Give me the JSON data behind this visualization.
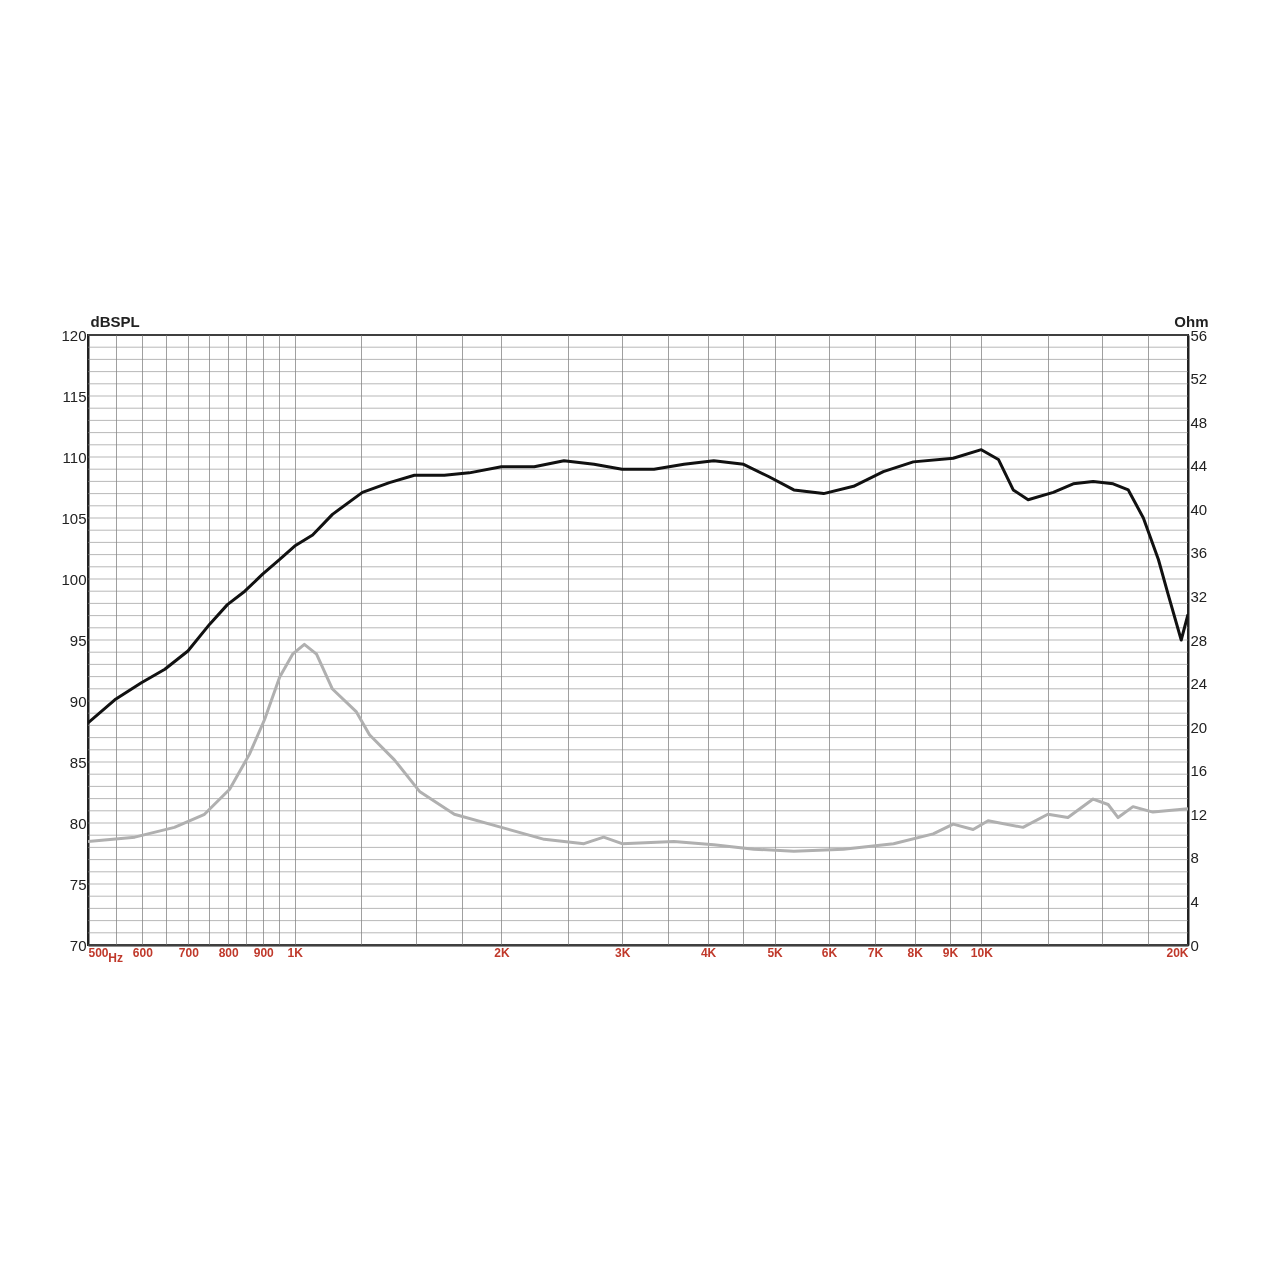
{
  "chart_data": {
    "type": "line",
    "ylabel": "dBSPL",
    "y2label": "Ohm",
    "xlabel": "Hz",
    "log": "x",
    "grid": true,
    "marker": "none",
    "line_style": "solid",
    "xlim": [
      500,
      20000
    ],
    "xticks": [
      500,
      {
        "value": 550,
        "label": null
      },
      600,
      {
        "value": 650,
        "label": null
      },
      700,
      {
        "value": 750,
        "label": null
      },
      800,
      {
        "value": 850,
        "label": null
      },
      900,
      {
        "value": 950,
        "label": null
      },
      {
        "value": 1000,
        "label": "1K"
      },
      {
        "value": 1250,
        "label": null
      },
      {
        "value": 1500,
        "label": null
      },
      {
        "value": 1750,
        "label": null
      },
      {
        "value": 2000,
        "label": "2K"
      },
      {
        "value": 2500,
        "label": null
      },
      {
        "value": 3000,
        "label": "3K"
      },
      {
        "value": 3500,
        "label": null
      },
      {
        "value": 4000,
        "label": "4K"
      },
      {
        "value": 4500,
        "label": null
      },
      {
        "value": 5000,
        "label": "5K"
      },
      {
        "value": 6000,
        "label": "6K"
      },
      {
        "value": 7000,
        "label": "7K"
      },
      {
        "value": 8000,
        "label": "8K"
      },
      {
        "value": 9000,
        "label": "9K"
      },
      {
        "value": 10000,
        "label": "10K"
      },
      {
        "value": 12500,
        "label": null
      },
      {
        "value": 15000,
        "label": null
      },
      {
        "value": 17500,
        "label": null
      },
      {
        "value": 20000,
        "label": "20K"
      }
    ],
    "ylim": [
      70,
      120
    ],
    "yticks": [
      70,
      {
        "value": 71,
        "label": null
      },
      {
        "value": 72,
        "label": null
      },
      {
        "value": 73,
        "label": null
      },
      {
        "value": 74,
        "label": null
      },
      75,
      {
        "value": 76,
        "label": null
      },
      {
        "value": 77,
        "label": null
      },
      {
        "value": 78,
        "label": null
      },
      {
        "value": 79,
        "label": null
      },
      80,
      {
        "value": 81,
        "label": null
      },
      {
        "value": 82,
        "label": null
      },
      {
        "value": 83,
        "label": null
      },
      {
        "value": 84,
        "label": null
      },
      85,
      {
        "value": 86,
        "label": null
      },
      {
        "value": 87,
        "label": null
      },
      {
        "value": 88,
        "label": null
      },
      {
        "value": 89,
        "label": null
      },
      90,
      {
        "value": 91,
        "label": null
      },
      {
        "value": 92,
        "label": null
      },
      {
        "value": 93,
        "label": null
      },
      {
        "value": 94,
        "label": null
      },
      95,
      {
        "value": 96,
        "label": null
      },
      {
        "value": 97,
        "label": null
      },
      {
        "value": 98,
        "label": null
      },
      {
        "value": 99,
        "label": null
      },
      100,
      {
        "value": 101,
        "label": null
      },
      {
        "value": 102,
        "label": null
      },
      {
        "value": 103,
        "label": null
      },
      {
        "value": 104,
        "label": null
      },
      105,
      {
        "value": 106,
        "label": null
      },
      {
        "value": 107,
        "label": null
      },
      {
        "value": 108,
        "label": null
      },
      {
        "value": 109,
        "label": null
      },
      110,
      {
        "value": 111,
        "label": null
      },
      {
        "value": 112,
        "label": null
      },
      {
        "value": 113,
        "label": null
      },
      {
        "value": 114,
        "label": null
      },
      115,
      {
        "value": 116,
        "label": null
      },
      {
        "value": 117,
        "label": null
      },
      {
        "value": 118,
        "label": null
      },
      {
        "value": 119,
        "label": null
      },
      120
    ],
    "y2lim": [
      0,
      56
    ],
    "y2ticks": [
      0,
      4,
      8,
      12,
      16,
      20,
      24,
      28,
      32,
      36,
      40,
      44,
      48,
      52,
      56
    ],
    "series": [
      {
        "color": "#111111",
        "x": [
          500,
          547,
          598,
          647,
          699,
          752,
          798,
          846,
          898,
          951,
          1000,
          1062,
          1135,
          1255,
          1374,
          1494,
          1652,
          1796,
          2000,
          2233,
          2467,
          2729,
          2998,
          3337,
          3690,
          4077,
          4506,
          4899,
          5333,
          5893,
          6515,
          7200,
          7960,
          9101,
          10000,
          10590,
          11130,
          11700,
          12730,
          13610,
          14550,
          15560,
          16370,
          17220,
          18110,
          18720,
          19550,
          20000
        ],
        "values": [
          88.2,
          90.1,
          91.5,
          92.6,
          94.1,
          96.3,
          97.9,
          99.0,
          100.4,
          101.6,
          102.7,
          103.6,
          105.3,
          107.1,
          107.9,
          108.5,
          108.5,
          108.7,
          109.2,
          109.2,
          109.7,
          109.4,
          109.0,
          109.0,
          109.4,
          109.7,
          109.4,
          108.4,
          107.3,
          107.0,
          107.6,
          108.8,
          109.6,
          109.9,
          110.6,
          109.8,
          107.3,
          106.5,
          107.1,
          107.8,
          108.0,
          107.8,
          107.3,
          105.0,
          101.6,
          98.7,
          95.0,
          97.1
        ]
      },
      {
        "color": "#b0b0b0",
        "axis": "y2",
        "x": [
          500,
          585,
          668,
          739,
          804,
          859,
          904,
          951,
          993,
          1033,
          1076,
          1135,
          1230,
          1285,
          1397,
          1520,
          1708,
          2000,
          2309,
          2638,
          2818,
          2998,
          3567,
          4077,
          4663,
          5333,
          6300,
          7450,
          8510,
          9101,
          9730,
          10230,
          11500,
          12500,
          13370,
          14550,
          15300,
          15820,
          16630,
          17780,
          20000
        ],
        "values": [
          9.5,
          9.9,
          10.8,
          12.0,
          14.3,
          17.5,
          20.7,
          24.6,
          26.7,
          27.6,
          26.7,
          23.5,
          21.4,
          19.3,
          17.0,
          14.1,
          12.0,
          10.8,
          9.7,
          9.3,
          9.9,
          9.3,
          9.5,
          9.2,
          8.8,
          8.6,
          8.8,
          9.3,
          10.2,
          11.1,
          10.6,
          11.4,
          10.8,
          12.0,
          11.7,
          13.4,
          12.9,
          11.7,
          12.7,
          12.2,
          12.5
        ]
      }
    ]
  }
}
